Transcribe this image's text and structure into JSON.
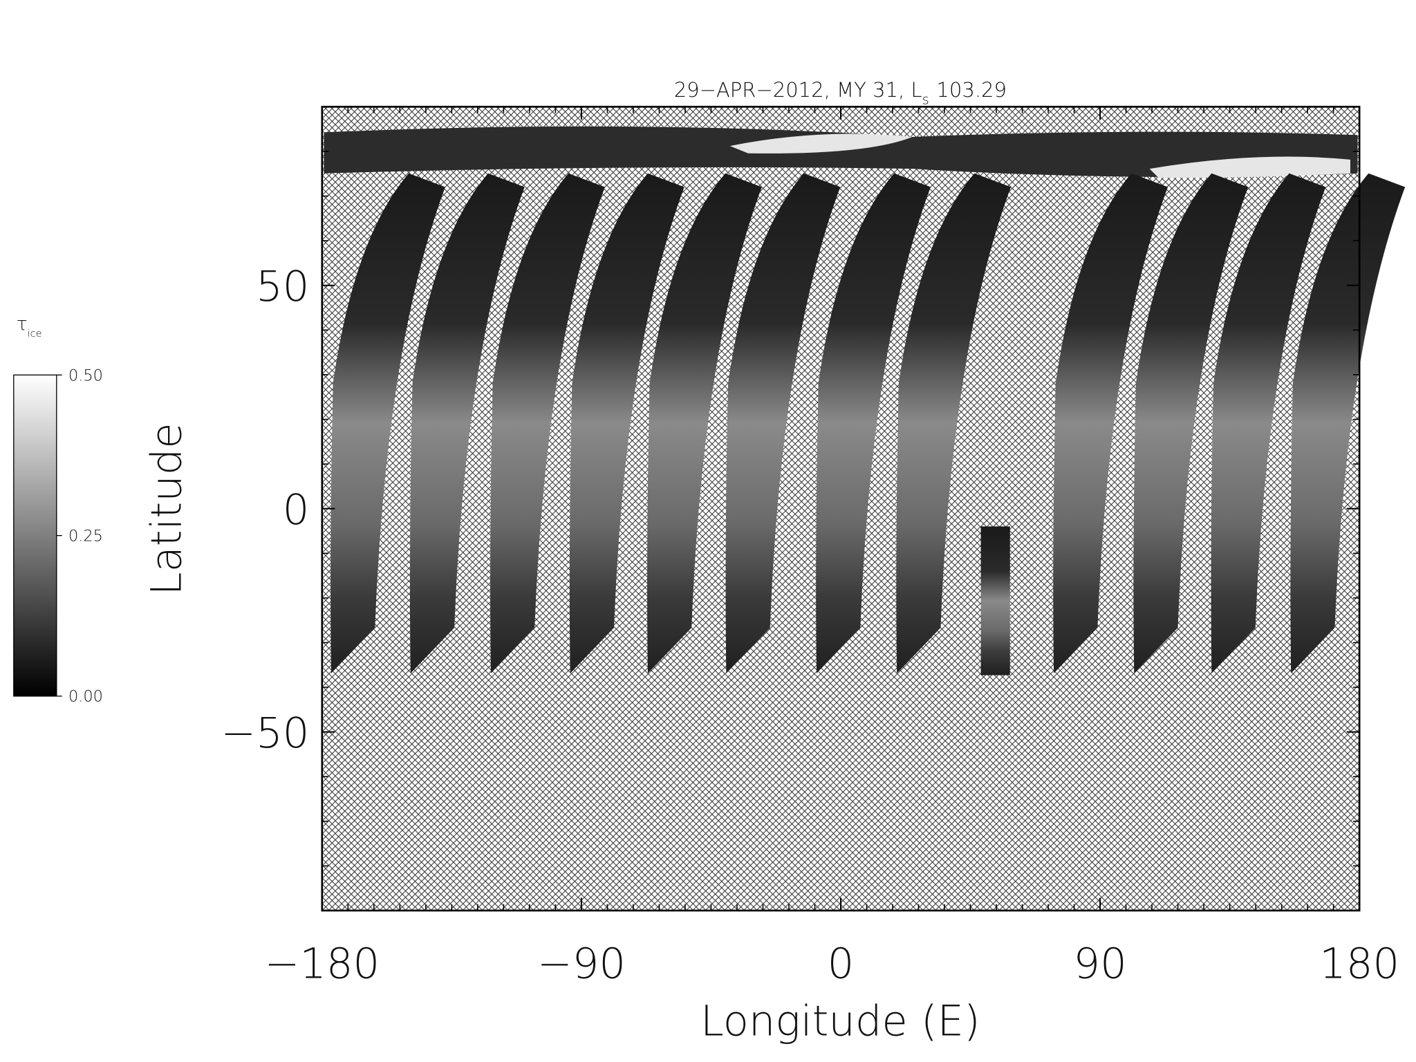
{
  "chart_data": {
    "type": "map",
    "title": {
      "main": "29−APR−2012, MY 31,  L",
      "sub": "s",
      "tail": "103.29"
    },
    "xlabel": "Longitude (E)",
    "ylabel": "Latitude",
    "xlim": [
      -180,
      180
    ],
    "ylim": [
      -90,
      90
    ],
    "xticks": [
      {
        "value": -180,
        "label": "−180"
      },
      {
        "value": -90,
        "label": "−90"
      },
      0,
      90,
      180
    ],
    "yticks": [
      {
        "value": -50,
        "label": "−50"
      },
      0,
      50
    ],
    "xminorticks": [
      -171,
      -162,
      -153,
      -144,
      -135,
      -126,
      -117,
      -108,
      -99,
      -81,
      -72,
      -63,
      -54,
      -45,
      -36,
      -27,
      -18,
      -9,
      9,
      18,
      27,
      36,
      45,
      54,
      63,
      72,
      81,
      99,
      108,
      117,
      126,
      135,
      144,
      153,
      162,
      171
    ],
    "yminorticks": [
      -80,
      -70,
      -60,
      -40,
      -30,
      -20,
      -10,
      10,
      20,
      30,
      40,
      60,
      70,
      80
    ],
    "colorbar": {
      "label": {
        "main": "τ",
        "sub": "ice"
      },
      "clim": [
        0,
        0.5
      ],
      "ticks": [
        {
          "value": 0,
          "label": "0.00"
        },
        {
          "value": 0.25,
          "label": "0.25"
        },
        {
          "value": 0.5,
          "label": "0.50"
        }
      ]
    }
  }
}
